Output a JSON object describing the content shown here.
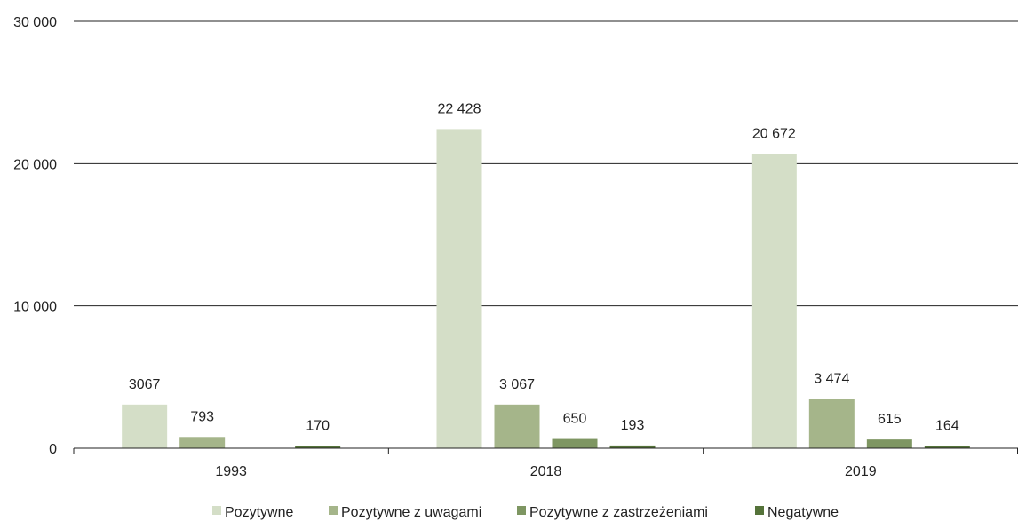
{
  "chart_data": {
    "type": "bar",
    "categories": [
      "1993",
      "2018",
      "2019"
    ],
    "series": [
      {
        "name": "Pozytywne",
        "color": "#d4dec7",
        "values": [
          3067,
          22428,
          20672
        ],
        "labels": [
          "3067",
          "22 428",
          "20 672"
        ]
      },
      {
        "name": "Pozytywne z uwagami",
        "color": "#a5b58a",
        "values": [
          793,
          3067,
          3474
        ],
        "labels": [
          "793",
          "3 067",
          "3 474"
        ]
      },
      {
        "name": "Pozytywne z zastrzeżeniami",
        "color": "#7e9662",
        "values": [
          null,
          650,
          615
        ],
        "labels": [
          "",
          "650",
          "615"
        ]
      },
      {
        "name": "Negatywne",
        "color": "#55733a",
        "values": [
          170,
          193,
          164
        ],
        "labels": [
          "170",
          "193",
          "164"
        ]
      }
    ],
    "ylim": [
      0,
      30000
    ],
    "yticks": [
      0,
      10000,
      20000,
      30000
    ],
    "ytick_labels": [
      "0",
      "10 000",
      "20 000",
      "30 000"
    ],
    "title": "",
    "xlabel": "",
    "ylabel": "",
    "grid": true,
    "legend_position": "bottom"
  }
}
